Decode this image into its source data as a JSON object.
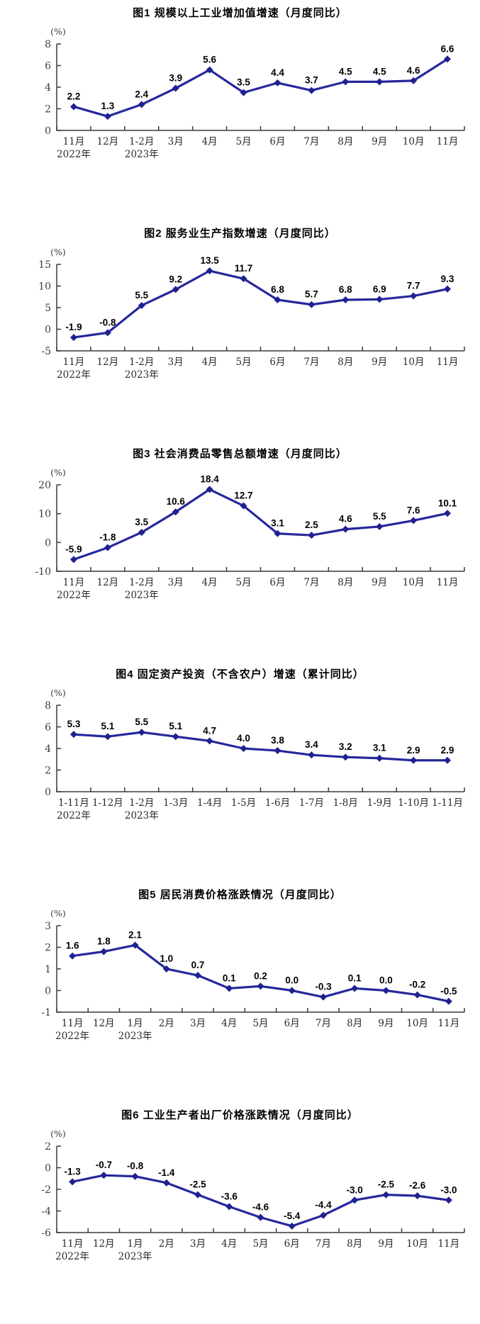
{
  "page": {
    "background": "#ffffff"
  },
  "style": {
    "line_color": "#26289C",
    "marker_color": "#1F2190",
    "value_label_color": "#000000",
    "axis_color": "#3a3a3a"
  },
  "chart_data": [
    {
      "type": "line",
      "title": "图1  规模以上工业增加值增速（月度同比）",
      "unit_label": "(%)",
      "categories": [
        "11月",
        "12月",
        "1-2月",
        "3月",
        "4月",
        "5月",
        "6月",
        "7月",
        "8月",
        "9月",
        "10月",
        "11月"
      ],
      "year_markers": [
        {
          "index": 0,
          "label": "2022年"
        },
        {
          "index": 2,
          "label": "2023年"
        }
      ],
      "values": [
        2.2,
        1.3,
        2.4,
        3.9,
        5.6,
        3.5,
        4.4,
        3.7,
        4.5,
        4.5,
        4.6,
        6.6
      ],
      "ylim": [
        0,
        8
      ],
      "yticks": [
        0,
        2,
        4,
        6,
        8
      ],
      "grid": false,
      "legend": "none"
    },
    {
      "type": "line",
      "title": "图2  服务业生产指数增速（月度同比）",
      "unit_label": "(%)",
      "categories": [
        "11月",
        "12月",
        "1-2月",
        "3月",
        "4月",
        "5月",
        "6月",
        "7月",
        "8月",
        "9月",
        "10月",
        "11月"
      ],
      "year_markers": [
        {
          "index": 0,
          "label": "2022年"
        },
        {
          "index": 2,
          "label": "2023年"
        }
      ],
      "values": [
        -1.9,
        -0.8,
        5.5,
        9.2,
        13.5,
        11.7,
        6.8,
        5.7,
        6.8,
        6.9,
        7.7,
        9.3
      ],
      "ylim": [
        -5,
        15
      ],
      "yticks": [
        -5,
        0,
        5,
        10,
        15
      ],
      "grid": false,
      "legend": "none"
    },
    {
      "type": "line",
      "title": "图3  社会消费品零售总额增速（月度同比）",
      "unit_label": "(%)",
      "categories": [
        "11月",
        "12月",
        "1-2月",
        "3月",
        "4月",
        "5月",
        "6月",
        "7月",
        "8月",
        "9月",
        "10月",
        "11月"
      ],
      "year_markers": [
        {
          "index": 0,
          "label": "2022年"
        },
        {
          "index": 2,
          "label": "2023年"
        }
      ],
      "values": [
        -5.9,
        -1.8,
        3.5,
        10.6,
        18.4,
        12.7,
        3.1,
        2.5,
        4.6,
        5.5,
        7.6,
        10.1
      ],
      "ylim": [
        -10,
        20
      ],
      "yticks": [
        -10,
        0,
        10,
        20
      ],
      "grid": false,
      "legend": "none"
    },
    {
      "type": "line",
      "title": "图4  固定资产投资（不含农户）增速（累计同比）",
      "unit_label": "(%)",
      "categories": [
        "1-11月",
        "1-12月",
        "1-2月",
        "1-3月",
        "1-4月",
        "1-5月",
        "1-6月",
        "1-7月",
        "1-8月",
        "1-9月",
        "1-10月",
        "1-11月"
      ],
      "year_markers": [
        {
          "index": 0,
          "label": "2022年"
        },
        {
          "index": 2,
          "label": "2023年"
        }
      ],
      "values": [
        5.3,
        5.1,
        5.5,
        5.1,
        4.7,
        4.0,
        3.8,
        3.4,
        3.2,
        3.1,
        2.9,
        2.9
      ],
      "ylim": [
        0,
        8
      ],
      "yticks": [
        0,
        2,
        4,
        6,
        8
      ],
      "grid": false,
      "legend": "none"
    },
    {
      "type": "line",
      "title": "图5  居民消费价格涨跌情况（月度同比）",
      "unit_label": "(%)",
      "categories": [
        "11月",
        "12月",
        "1月",
        "2月",
        "3月",
        "4月",
        "5月",
        "6月",
        "7月",
        "8月",
        "9月",
        "10月",
        "11月"
      ],
      "year_markers": [
        {
          "index": 0,
          "label": "2022年"
        },
        {
          "index": 2,
          "label": "2023年"
        }
      ],
      "values": [
        1.6,
        1.8,
        2.1,
        1.0,
        0.7,
        0.1,
        0.2,
        0.0,
        -0.3,
        0.1,
        0.0,
        -0.2,
        -0.5
      ],
      "ylim": [
        -1,
        3
      ],
      "yticks": [
        -1,
        0,
        1,
        2,
        3
      ],
      "grid": false,
      "legend": "none"
    },
    {
      "type": "line",
      "title": "图6  工业生产者出厂价格涨跌情况（月度同比）",
      "unit_label": "(%)",
      "categories": [
        "11月",
        "12月",
        "1月",
        "2月",
        "3月",
        "4月",
        "5月",
        "6月",
        "7月",
        "8月",
        "9月",
        "10月",
        "11月"
      ],
      "year_markers": [
        {
          "index": 0,
          "label": "2022年"
        },
        {
          "index": 2,
          "label": "2023年"
        }
      ],
      "values": [
        -1.3,
        -0.7,
        -0.8,
        -1.4,
        -2.5,
        -3.6,
        -4.6,
        -5.4,
        -4.4,
        -3.0,
        -2.5,
        -2.6,
        -3.0
      ],
      "ylim": [
        -6,
        2
      ],
      "yticks": [
        -6,
        -4,
        -2,
        0,
        2
      ],
      "grid": false,
      "legend": "none"
    }
  ]
}
